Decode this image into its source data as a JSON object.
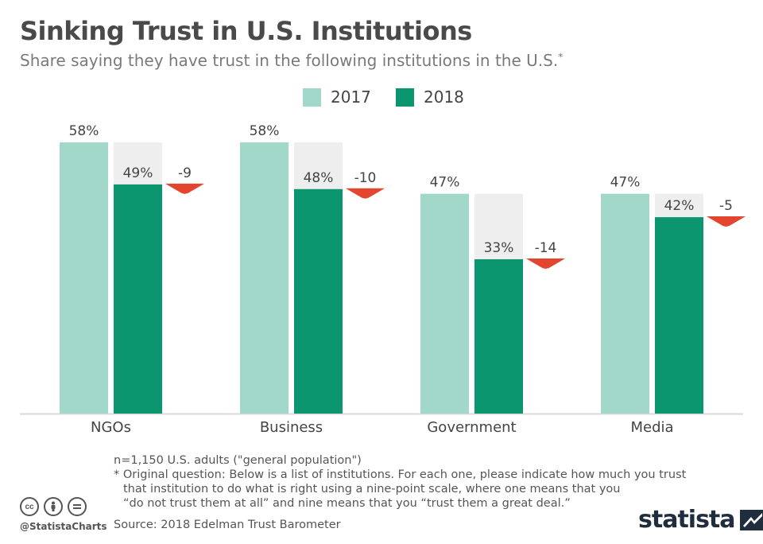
{
  "header": {
    "title": "Sinking Trust in U.S. Institutions",
    "subtitle": "Share saying they have trust in the following institutions in the U.S.",
    "subtitle_marker": "*"
  },
  "legend": [
    {
      "label": "2017",
      "color": "#a1d8c9"
    },
    {
      "label": "2018",
      "color": "#0b9670"
    }
  ],
  "chart_data": {
    "type": "bar",
    "categories": [
      "NGOs",
      "Business",
      "Government",
      "Media"
    ],
    "series": [
      {
        "name": "2017",
        "values": [
          58,
          58,
          47,
          47
        ],
        "labels": [
          "58%",
          "58%",
          "47%",
          "47%"
        ],
        "color": "#a1d8c9"
      },
      {
        "name": "2018",
        "values": [
          49,
          48,
          33,
          42
        ],
        "labels": [
          "49%",
          "48%",
          "33%",
          "42%"
        ],
        "color": "#0b9670"
      }
    ],
    "changes": [
      -9,
      -10,
      -14,
      -5
    ],
    "change_labels": [
      "-9",
      "-10",
      "-14",
      "-5"
    ],
    "change_color": "#e3452f",
    "gap_color": "#eeeeee",
    "ylim": [
      0,
      100
    ],
    "grid": false,
    "legend_position": "top-center"
  },
  "footer": {
    "note_n": "n=1,150 U.S. adults (\"general population\")",
    "note_q": [
      "* Original question: Below is a list of institutions. For each one, please indicate how much you trust",
      "that institution to do what is right using a nine-point scale, where one means that you",
      "“do not trust them at all” and nine means that you “trust them a great deal.”"
    ],
    "source": "Source: 2018 Edelman Trust Barometer",
    "handle": "@StatistaCharts",
    "brand": "statista",
    "cc_icons": [
      "cc-icon",
      "by-person-icon",
      "nd-equals-icon"
    ]
  }
}
